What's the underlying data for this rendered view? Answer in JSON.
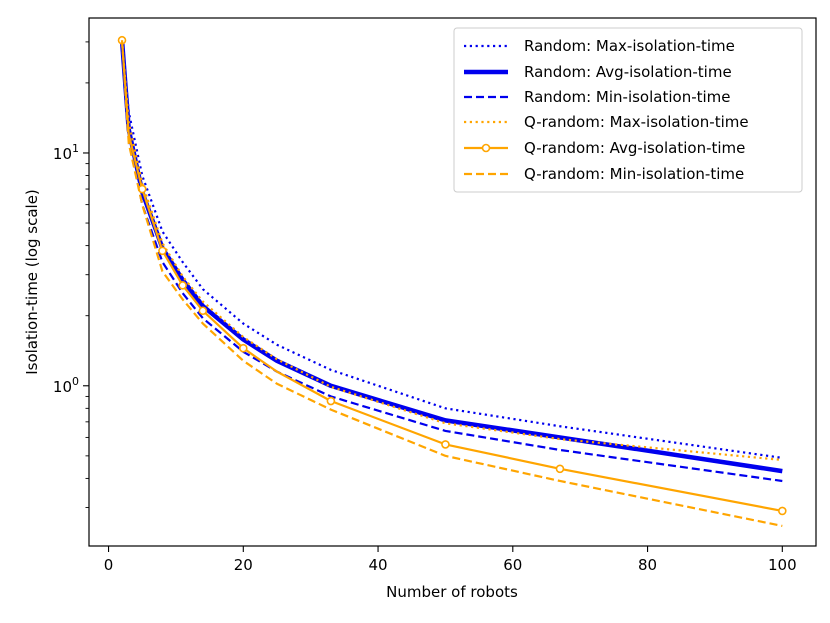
{
  "chart_data": {
    "type": "line",
    "xlabel": "Number of robots",
    "ylabel": "Isolation-time (log scale)",
    "yscale": "log",
    "xlim": [
      -2.9,
      105
    ],
    "ylim": [
      0.205,
      38
    ],
    "x_ticks": [
      0,
      20,
      40,
      60,
      80,
      100
    ],
    "x_tick_labels": [
      "0",
      "20",
      "40",
      "60",
      "80",
      "100"
    ],
    "y_major_ticks": [
      1,
      10
    ],
    "y_minor_ticks": [
      0.3,
      0.4,
      0.5,
      0.6,
      0.7,
      0.8,
      0.9,
      2,
      3,
      4,
      5,
      6,
      7,
      8,
      9,
      20,
      30
    ],
    "legend_position": "upper-right",
    "x": [
      2,
      3,
      5,
      8,
      11,
      14,
      20,
      25,
      33,
      50,
      67,
      100
    ],
    "series": [
      {
        "name": "Random: Max-isolation-time",
        "color": "#0000ee",
        "style": "dotted",
        "width": 2.2,
        "values": [
          30.5,
          15.0,
          8.0,
          4.6,
          3.4,
          2.6,
          1.85,
          1.5,
          1.17,
          0.8,
          0.67,
          0.49
        ]
      },
      {
        "name": "Random: Avg-isolation-time",
        "color": "#0000ee",
        "style": "solid",
        "width": 4.5,
        "values": [
          30.5,
          12.6,
          6.8,
          3.9,
          2.85,
          2.2,
          1.58,
          1.28,
          1.0,
          0.71,
          0.6,
          0.43
        ]
      },
      {
        "name": "Random: Min-isolation-time",
        "color": "#0000ee",
        "style": "dashed",
        "width": 2.2,
        "values": [
          30.5,
          11.5,
          6.0,
          3.4,
          2.5,
          1.95,
          1.4,
          1.15,
          0.9,
          0.64,
          0.53,
          0.39
        ]
      },
      {
        "name": "Q-random: Max-isolation-time",
        "color": "#ffa500",
        "style": "dotted",
        "width": 2.2,
        "values": [
          30.5,
          13.5,
          7.4,
          4.1,
          2.95,
          2.3,
          1.62,
          1.3,
          0.99,
          0.69,
          0.59,
          0.48
        ]
      },
      {
        "name": "Q-random: Avg-isolation-time",
        "color": "#ffa500",
        "style": "solid-marker",
        "width": 2.2,
        "values": [
          30.5,
          12.0,
          7.0,
          3.8,
          2.7,
          2.1,
          1.45,
          1.15,
          0.86,
          0.56,
          0.44,
          0.29
        ]
      },
      {
        "name": "Q-random: Min-isolation-time",
        "color": "#ffa500",
        "style": "dashed",
        "width": 2.2,
        "values": [
          30.5,
          11.0,
          6.0,
          3.1,
          2.35,
          1.85,
          1.28,
          1.02,
          0.79,
          0.5,
          0.39,
          0.25
        ]
      }
    ],
    "marker_x": [
      2,
      5,
      8,
      11,
      14,
      20,
      33,
      50,
      67,
      100
    ]
  }
}
